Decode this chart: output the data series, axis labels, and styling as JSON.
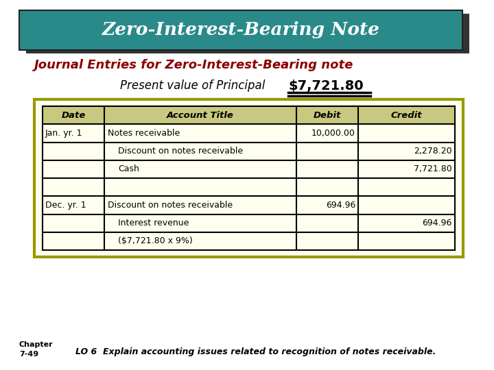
{
  "title": "Zero-Interest-Bearing Note",
  "subtitle": "Journal Entries for Zero-Interest-Bearing note",
  "pv_label": "Present value of Principal",
  "pv_value": "$7,721.80",
  "title_bg": "#2a8a8a",
  "title_color": "#ffffff",
  "subtitle_color": "#8b0000",
  "table_bg": "#fffff0",
  "table_border": "#999900",
  "header_row": [
    "Date",
    "Account Title",
    "Debit",
    "Credit"
  ],
  "rows": [
    [
      "Jan. yr. 1",
      "Notes receivable",
      "10,000.00",
      ""
    ],
    [
      "",
      "Discount on notes receivable",
      "",
      "2,278.20"
    ],
    [
      "",
      "Cash",
      "",
      "7,721.80"
    ],
    [
      "",
      "",
      "",
      ""
    ],
    [
      "Dec. yr. 1",
      "Discount on notes receivable",
      "694.96",
      ""
    ],
    [
      "",
      "Interest revenue",
      "",
      "694.96"
    ],
    [
      "",
      "($7,721.80 x 9%)",
      "",
      ""
    ]
  ],
  "footer_chapter": "Chapter\n7-49",
  "footer_lo": "LO 6  Explain accounting issues related to recognition of notes receivable.",
  "bg_color": "#ffffff"
}
